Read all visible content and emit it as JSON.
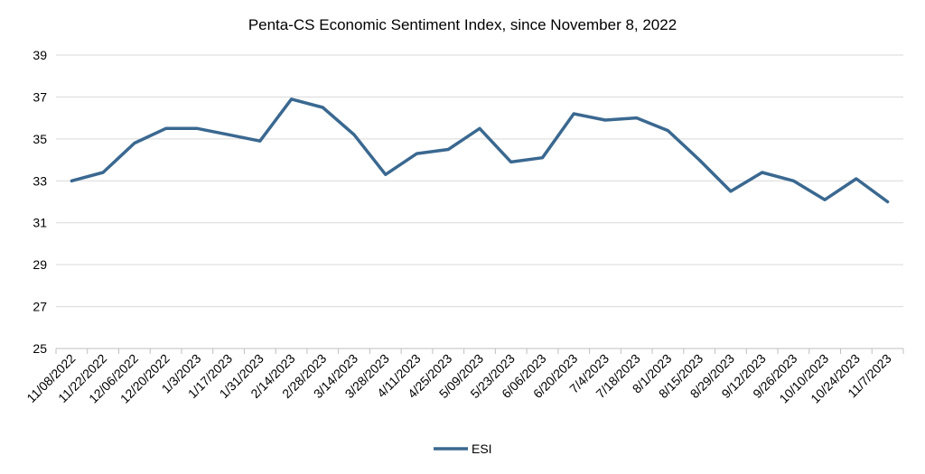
{
  "chart_data": {
    "type": "line",
    "title": "Penta-CS Economic Sentiment Index, since November 8, 2022",
    "xlabel": "",
    "ylabel": "",
    "ylim": [
      25,
      39
    ],
    "yticks": [
      25,
      27,
      29,
      31,
      33,
      35,
      37,
      39
    ],
    "grid": "horizontal",
    "legend_position": "bottom",
    "categories": [
      "11/08/2022",
      "11/22/2022",
      "12/06/2022",
      "12/20/2022",
      "1/3/2023",
      "1/17/2023",
      "1/31/2023",
      "2/14/2023",
      "2/28/2023",
      "3/14/2023",
      "3/28/2023",
      "4/11/2023",
      "4/25/2023",
      "5/09/2023",
      "5/23/2023",
      "6/06/2023",
      "6/20/2023",
      "7/4/2023",
      "7/18/2023",
      "8/1/2023",
      "8/15/2023",
      "8/29/2023",
      "9/12/2023",
      "9/26/2023",
      "10/10/2023",
      "10/24/2023",
      "11/7/2023"
    ],
    "series": [
      {
        "name": "ESI",
        "color": "#3a6890",
        "values": [
          33.0,
          33.4,
          34.8,
          35.5,
          35.5,
          35.2,
          34.9,
          36.9,
          36.5,
          35.2,
          33.3,
          34.3,
          34.5,
          35.5,
          33.9,
          34.1,
          36.2,
          35.9,
          36.0,
          35.4,
          34.0,
          32.5,
          33.4,
          33.0,
          32.1,
          33.1,
          32.0
        ]
      }
    ]
  }
}
